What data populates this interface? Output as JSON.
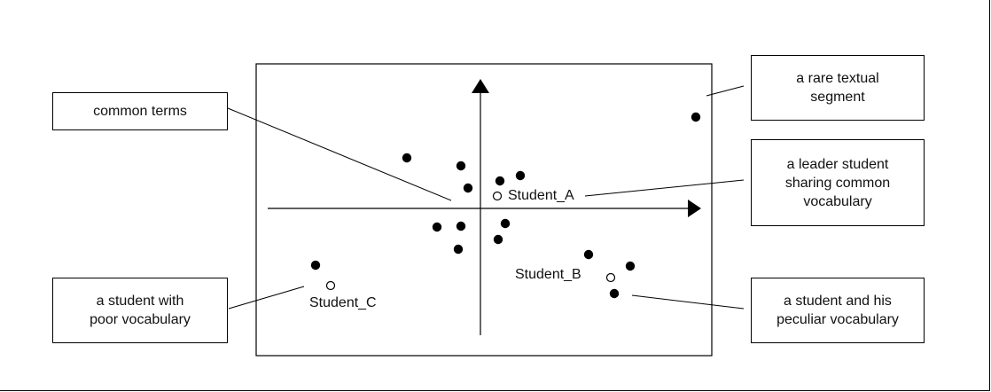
{
  "callouts": {
    "common_terms": "common terms",
    "rare_segment": "a rare textual\nsegment",
    "leader_student": "a leader student\nsharing common\nvocabulary",
    "poor_vocab": "a student with\npoor vocabulary",
    "peculiar_vocab": "a student and his\npeculiar vocabulary"
  },
  "students": {
    "a": "Student_A",
    "b": "Student_B",
    "c": "Student_C"
  },
  "colors": {
    "line": "#000000",
    "background": "#ffffff"
  }
}
